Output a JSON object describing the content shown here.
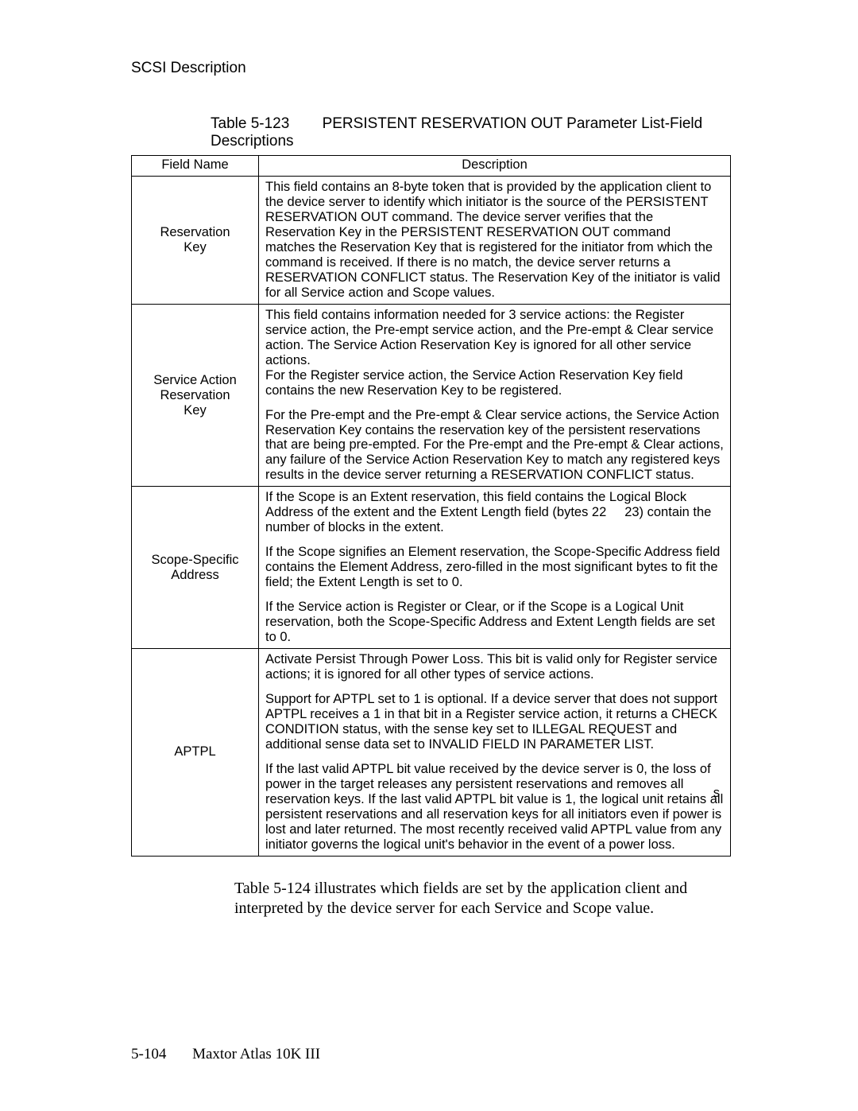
{
  "header": {
    "section": "SCSI Description"
  },
  "table": {
    "caption_label": "Table 5-123",
    "caption_title": "PERSISTENT RESERVATION OUT Parameter List-Field Descriptions",
    "col1_header": "Field Name",
    "col2_header": "Description",
    "rows": [
      {
        "name": "Reservation Key",
        "paras": [
          "This field contains an 8-byte token that is provided by the application client to the device server to identify which initiator is the source of the PERSISTENT RESERVATION OUT command. The device server verifies that the Reservation Key in the PERSISTENT RESERVATION OUT command matches the Reservation Key that is registered for the initiator from which the command is received. If there is no match, the device server returns a RESERVATION CONFLICT status. The Reservation Key of the initiator is valid for all Service action and Scope values."
        ]
      },
      {
        "name": "Service Action Reservation Key",
        "paras": [
          "This field contains information needed for 3 service actions: the Register service action, the Pre-empt service action, and the Pre-empt & Clear service action. The Service Action Reservation Key is ignored for all other service actions.\nFor the Register service action, the Service Action Reservation Key field contains the new Reservation Key to be registered.",
          "For the Pre-empt and the Pre-empt & Clear service actions, the Service Action Reservation Key contains the reservation key of the persistent reservations that are being pre-empted. For the Pre-empt and the Pre-empt & Clear actions, any failure of the Service Action Reservation Key to match any registered keys results in the device server returning a RESERVATION CONFLICT status."
        ]
      },
      {
        "name": "Scope-Specific Address",
        "paras": [
          "If the Scope is an Extent reservation, this field contains the Logical Block Address of the extent and the Extent Length field (bytes 22 – 23) contain the number of blocks in the extent.",
          "If the Scope signifies an Element reservation, the Scope-Specific Address field contains the Element Address, zero-filled in the most significant bytes to fit the field; the Extent Length is set to 0.",
          "If the Service action is Register or Clear, or if the Scope is a Logical Unit reservation, both the Scope-Specific Address and Extent Length fields are set to 0."
        ]
      },
      {
        "name": "APTPL",
        "paras": [
          "Activate Persist Through Power Loss. This bit is valid only for Register service actions; it is ignored for all other types of service actions.",
          "Support for APTPL set to 1 is optional. If a device server that does not support APTPL receives a 1 in that bit in a Register service action, it returns a CHECK CONDITION status, with the sense key set to ILLEGAL REQUEST and additional sense data set to INVALID FIELD IN PARAMETER LIST.",
          "If the last valid APTPL bit value received by the device server is 0, the loss of power in the target releases any persistent reservations and removes all reservation keys. If the last valid APTPL bit value is 1, the logical unit retains all persistent reservations and all reservation keys for all initiators even if power is lost and later returned. The most recently received valid APTPL value from any initiator governs the logical unit's behavior in the event of a power loss."
        ]
      }
    ]
  },
  "followup_text": "Table 5-124 illustrates which fields are set by the application client and interpreted by the device server for each Service and Scope value.",
  "footer": {
    "page_number": "5-104",
    "product": "Maxtor Atlas 10K III"
  },
  "stray": {
    "initiator_s": "s"
  }
}
